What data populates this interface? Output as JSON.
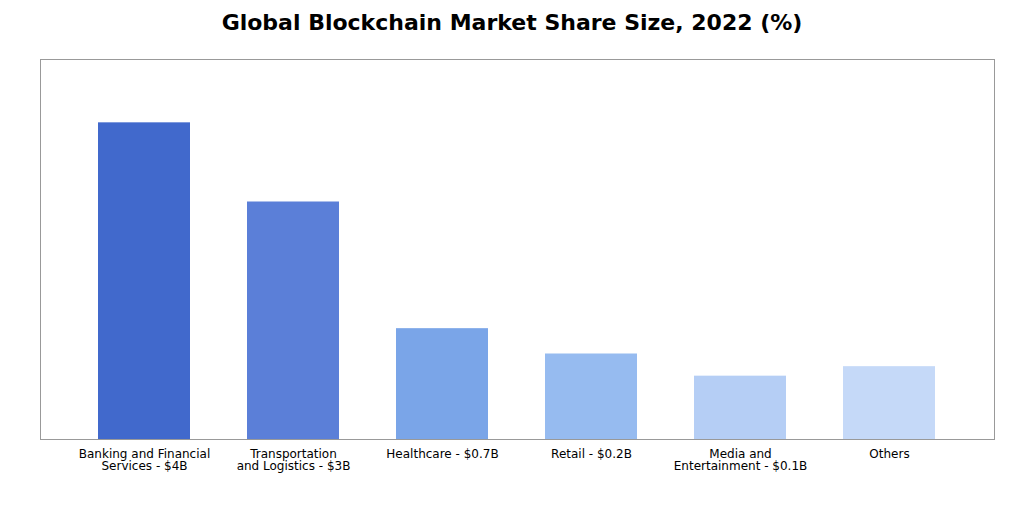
{
  "chart_data": {
    "type": "bar",
    "title": "Global Blockchain Market Share Size, 2022 (%)",
    "categories": [
      "Banking and Financial\nServices - $4B",
      "Transportation\nand Logistics - $3B",
      "Healthcare - $0.7B",
      "Retail - $0.2B",
      "Media and\nEntertainment - $0.1B",
      "Others"
    ],
    "values": [
      100,
      75,
      35,
      27,
      20,
      23
    ],
    "colors": [
      "#4169CC",
      "#5B7FD8",
      "#7AA5E8",
      "#96BBF0",
      "#B5CEF5",
      "#C5D9F8"
    ],
    "ylim": [
      0,
      120
    ],
    "grid": false,
    "tick_labels": "x"
  }
}
